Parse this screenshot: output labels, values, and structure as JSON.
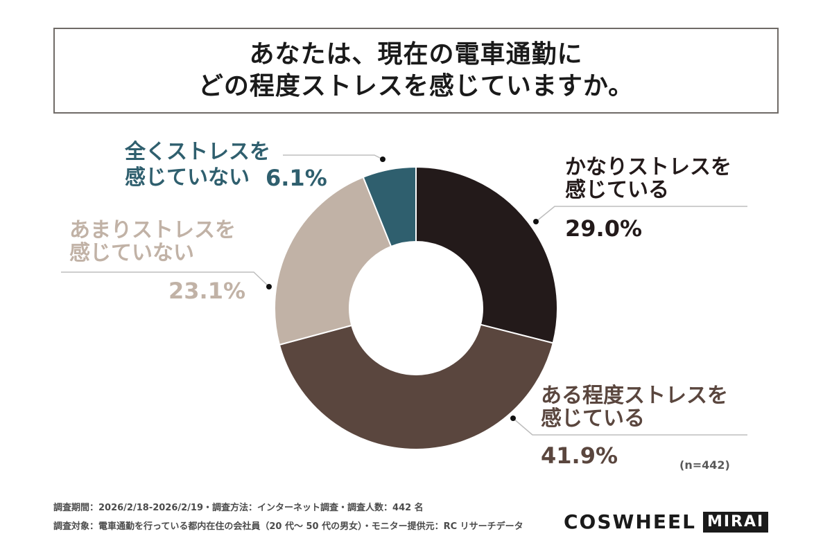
{
  "title": {
    "line1": "あなたは、現在の電車通勤に",
    "line2": "どの程度ストレスを感じていますか。"
  },
  "chart_data": {
    "type": "pie",
    "title": "あなたは、現在の電車通勤に どの程度ストレスを感じていますか。",
    "unit": "%",
    "slices": [
      {
        "label_line1": "かなりストレスを",
        "label_line2": "感じている",
        "value": 29.0,
        "value_label": "29.0%",
        "color": "#231a1a",
        "label_color": "#231a1a"
      },
      {
        "label_line1": "ある程度ストレスを",
        "label_line2": "感じている",
        "value": 41.9,
        "value_label": "41.9%",
        "color": "#5a463e",
        "label_color": "#5a463e"
      },
      {
        "label_line1": "あまりストレスを",
        "label_line2": "感じていない",
        "value": 23.1,
        "value_label": "23.1%",
        "color": "#c1b2a6",
        "label_color": "#c1b2a6"
      },
      {
        "label_line1": "全くストレスを",
        "label_line2": "感じていない",
        "value": 6.1,
        "value_label": "6.1%",
        "color": "#2f5f6e",
        "label_color": "#2f5f6e"
      }
    ],
    "sample_size": "(n=442)"
  },
  "footer": {
    "line1": "調査期間：2026/2/18-2026/2/19・調査方法：インターネット調査・調査人数：442 名",
    "line2": "調査対象：電車通勤を行っている都内在住の会社員（20 代～ 50 代の男女）・モニター提供元：RC リサーチデータ"
  },
  "brand": {
    "name": "COSWHEEL",
    "sub": "MIRAI"
  }
}
